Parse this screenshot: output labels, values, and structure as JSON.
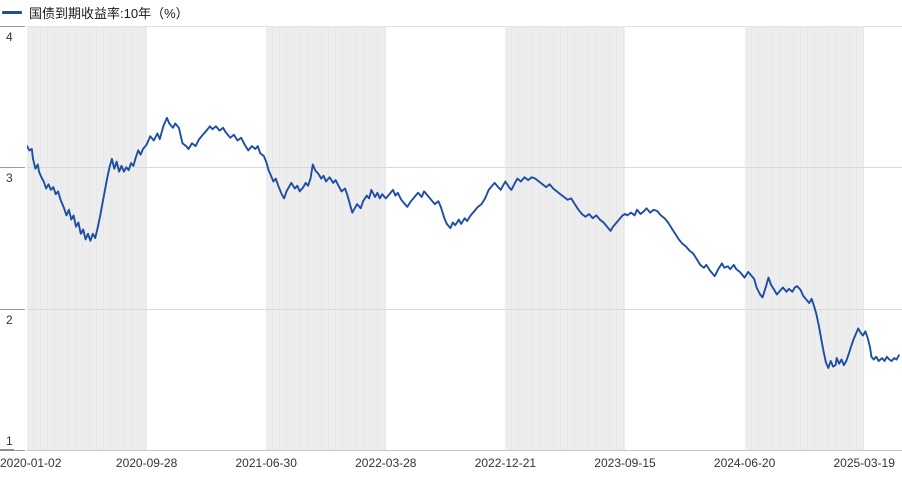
{
  "legend": {
    "label": "国债到期收益率:10年（%）",
    "marker_color": "#1e4ea3"
  },
  "colors": {
    "line": "#1e4ea3",
    "stripe": "#ececec",
    "grid": "#d9d9d9",
    "axis": "#c6c6c6",
    "text": "#333333"
  },
  "chart_data": {
    "type": "line",
    "title": "国债到期收益率:10年（%）",
    "xlabel": "",
    "ylabel": "",
    "ylim": [
      1,
      4
    ],
    "y_ticks": [
      4,
      3,
      2,
      1
    ],
    "x_ticks": [
      "2020-01-02",
      "2020-09-28",
      "2021-06-30",
      "2022-03-28",
      "2022-12-21",
      "2023-09-15",
      "2024-06-20",
      "2025-03-19"
    ],
    "grid": "horizontal",
    "background_bands": "alternating gray/white between x ticks, starting gray",
    "legend_position": "top-left",
    "series": [
      {
        "name": "国债到期收益率:10年",
        "color": "#1e4ea3",
        "unit": "%",
        "points": [
          [
            0.0,
            3.15
          ],
          [
            0.02,
            3.12
          ],
          [
            0.04,
            3.13
          ],
          [
            0.05,
            3.06
          ],
          [
            0.07,
            2.99
          ],
          [
            0.09,
            3.02
          ],
          [
            0.1,
            2.97
          ],
          [
            0.12,
            2.93
          ],
          [
            0.14,
            2.9
          ],
          [
            0.16,
            2.85
          ],
          [
            0.18,
            2.88
          ],
          [
            0.2,
            2.84
          ],
          [
            0.22,
            2.86
          ],
          [
            0.24,
            2.81
          ],
          [
            0.26,
            2.83
          ],
          [
            0.28,
            2.77
          ],
          [
            0.31,
            2.71
          ],
          [
            0.33,
            2.66
          ],
          [
            0.35,
            2.7
          ],
          [
            0.37,
            2.63
          ],
          [
            0.39,
            2.66
          ],
          [
            0.41,
            2.58
          ],
          [
            0.43,
            2.61
          ],
          [
            0.45,
            2.53
          ],
          [
            0.47,
            2.56
          ],
          [
            0.49,
            2.49
          ],
          [
            0.51,
            2.53
          ],
          [
            0.53,
            2.48
          ],
          [
            0.55,
            2.53
          ],
          [
            0.57,
            2.5
          ],
          [
            0.59,
            2.57
          ],
          [
            0.61,
            2.65
          ],
          [
            0.63,
            2.74
          ],
          [
            0.65,
            2.83
          ],
          [
            0.67,
            2.92
          ],
          [
            0.69,
            3.0
          ],
          [
            0.71,
            3.06
          ],
          [
            0.73,
            2.99
          ],
          [
            0.75,
            3.04
          ],
          [
            0.77,
            2.97
          ],
          [
            0.79,
            3.01
          ],
          [
            0.81,
            2.97
          ],
          [
            0.83,
            3.0
          ],
          [
            0.85,
            2.98
          ],
          [
            0.87,
            3.03
          ],
          [
            0.89,
            3.01
          ],
          [
            0.91,
            3.07
          ],
          [
            0.93,
            3.12
          ],
          [
            0.95,
            3.09
          ],
          [
            0.97,
            3.13
          ],
          [
            1.0,
            3.16
          ],
          [
            1.03,
            3.22
          ],
          [
            1.06,
            3.19
          ],
          [
            1.09,
            3.24
          ],
          [
            1.11,
            3.2
          ],
          [
            1.14,
            3.29
          ],
          [
            1.17,
            3.35
          ],
          [
            1.19,
            3.31
          ],
          [
            1.22,
            3.28
          ],
          [
            1.24,
            3.31
          ],
          [
            1.27,
            3.28
          ],
          [
            1.3,
            3.17
          ],
          [
            1.33,
            3.15
          ],
          [
            1.35,
            3.13
          ],
          [
            1.38,
            3.17
          ],
          [
            1.41,
            3.15
          ],
          [
            1.44,
            3.2
          ],
          [
            1.47,
            3.23
          ],
          [
            1.5,
            3.26
          ],
          [
            1.53,
            3.29
          ],
          [
            1.55,
            3.27
          ],
          [
            1.58,
            3.29
          ],
          [
            1.61,
            3.26
          ],
          [
            1.64,
            3.28
          ],
          [
            1.66,
            3.25
          ],
          [
            1.7,
            3.21
          ],
          [
            1.73,
            3.23
          ],
          [
            1.76,
            3.19
          ],
          [
            1.79,
            3.21
          ],
          [
            1.82,
            3.16
          ],
          [
            1.85,
            3.12
          ],
          [
            1.88,
            3.15
          ],
          [
            1.91,
            3.13
          ],
          [
            1.93,
            3.15
          ],
          [
            1.95,
            3.1
          ],
          [
            1.98,
            3.08
          ],
          [
            2.0,
            3.04
          ],
          [
            2.02,
            2.98
          ],
          [
            2.04,
            2.94
          ],
          [
            2.06,
            2.9
          ],
          [
            2.08,
            2.92
          ],
          [
            2.1,
            2.87
          ],
          [
            2.13,
            2.81
          ],
          [
            2.15,
            2.78
          ],
          [
            2.17,
            2.83
          ],
          [
            2.19,
            2.86
          ],
          [
            2.21,
            2.89
          ],
          [
            2.24,
            2.85
          ],
          [
            2.26,
            2.87
          ],
          [
            2.28,
            2.83
          ],
          [
            2.31,
            2.86
          ],
          [
            2.33,
            2.89
          ],
          [
            2.35,
            2.87
          ],
          [
            2.37,
            2.92
          ],
          [
            2.39,
            3.02
          ],
          [
            2.41,
            2.98
          ],
          [
            2.44,
            2.95
          ],
          [
            2.46,
            2.92
          ],
          [
            2.48,
            2.94
          ],
          [
            2.5,
            2.9
          ],
          [
            2.53,
            2.93
          ],
          [
            2.56,
            2.89
          ],
          [
            2.58,
            2.91
          ],
          [
            2.61,
            2.86
          ],
          [
            2.63,
            2.83
          ],
          [
            2.66,
            2.85
          ],
          [
            2.68,
            2.8
          ],
          [
            2.7,
            2.74
          ],
          [
            2.72,
            2.68
          ],
          [
            2.74,
            2.71
          ],
          [
            2.76,
            2.74
          ],
          [
            2.79,
            2.71
          ],
          [
            2.81,
            2.76
          ],
          [
            2.84,
            2.8
          ],
          [
            2.86,
            2.78
          ],
          [
            2.88,
            2.84
          ],
          [
            2.91,
            2.79
          ],
          [
            2.93,
            2.82
          ],
          [
            2.95,
            2.78
          ],
          [
            2.97,
            2.81
          ],
          [
            3.0,
            2.78
          ],
          [
            3.03,
            2.81
          ],
          [
            3.06,
            2.84
          ],
          [
            3.08,
            2.8
          ],
          [
            3.1,
            2.82
          ],
          [
            3.13,
            2.77
          ],
          [
            3.16,
            2.74
          ],
          [
            3.18,
            2.72
          ],
          [
            3.21,
            2.76
          ],
          [
            3.24,
            2.79
          ],
          [
            3.27,
            2.82
          ],
          [
            3.3,
            2.79
          ],
          [
            3.32,
            2.83
          ],
          [
            3.35,
            2.8
          ],
          [
            3.38,
            2.77
          ],
          [
            3.41,
            2.74
          ],
          [
            3.44,
            2.76
          ],
          [
            3.46,
            2.72
          ],
          [
            3.49,
            2.64
          ],
          [
            3.51,
            2.6
          ],
          [
            3.54,
            2.57
          ],
          [
            3.56,
            2.61
          ],
          [
            3.58,
            2.59
          ],
          [
            3.61,
            2.63
          ],
          [
            3.63,
            2.6
          ],
          [
            3.66,
            2.64
          ],
          [
            3.68,
            2.62
          ],
          [
            3.71,
            2.66
          ],
          [
            3.74,
            2.69
          ],
          [
            3.77,
            2.72
          ],
          [
            3.8,
            2.74
          ],
          [
            3.83,
            2.78
          ],
          [
            3.86,
            2.84
          ],
          [
            3.89,
            2.87
          ],
          [
            3.91,
            2.89
          ],
          [
            3.94,
            2.86
          ],
          [
            3.96,
            2.84
          ],
          [
            3.98,
            2.87
          ],
          [
            4.0,
            2.9
          ],
          [
            4.03,
            2.86
          ],
          [
            4.05,
            2.84
          ],
          [
            4.08,
            2.89
          ],
          [
            4.1,
            2.92
          ],
          [
            4.13,
            2.9
          ],
          [
            4.16,
            2.93
          ],
          [
            4.19,
            2.91
          ],
          [
            4.22,
            2.93
          ],
          [
            4.25,
            2.92
          ],
          [
            4.28,
            2.9
          ],
          [
            4.31,
            2.88
          ],
          [
            4.34,
            2.86
          ],
          [
            4.37,
            2.88
          ],
          [
            4.4,
            2.85
          ],
          [
            4.43,
            2.83
          ],
          [
            4.46,
            2.81
          ],
          [
            4.49,
            2.79
          ],
          [
            4.52,
            2.77
          ],
          [
            4.55,
            2.78
          ],
          [
            4.58,
            2.74
          ],
          [
            4.61,
            2.7
          ],
          [
            4.64,
            2.67
          ],
          [
            4.67,
            2.65
          ],
          [
            4.7,
            2.67
          ],
          [
            4.73,
            2.64
          ],
          [
            4.76,
            2.66
          ],
          [
            4.79,
            2.63
          ],
          [
            4.82,
            2.61
          ],
          [
            4.85,
            2.58
          ],
          [
            4.88,
            2.55
          ],
          [
            4.9,
            2.58
          ],
          [
            4.93,
            2.61
          ],
          [
            4.96,
            2.64
          ],
          [
            4.98,
            2.66
          ],
          [
            5.0,
            2.67
          ],
          [
            5.02,
            2.66
          ],
          [
            5.05,
            2.68
          ],
          [
            5.08,
            2.66
          ],
          [
            5.1,
            2.7
          ],
          [
            5.13,
            2.67
          ],
          [
            5.16,
            2.69
          ],
          [
            5.18,
            2.71
          ],
          [
            5.21,
            2.68
          ],
          [
            5.24,
            2.7
          ],
          [
            5.27,
            2.69
          ],
          [
            5.3,
            2.66
          ],
          [
            5.33,
            2.64
          ],
          [
            5.36,
            2.61
          ],
          [
            5.39,
            2.57
          ],
          [
            5.42,
            2.53
          ],
          [
            5.45,
            2.49
          ],
          [
            5.48,
            2.46
          ],
          [
            5.51,
            2.44
          ],
          [
            5.54,
            2.41
          ],
          [
            5.57,
            2.39
          ],
          [
            5.6,
            2.35
          ],
          [
            5.63,
            2.31
          ],
          [
            5.66,
            2.29
          ],
          [
            5.68,
            2.31
          ],
          [
            5.71,
            2.27
          ],
          [
            5.73,
            2.25
          ],
          [
            5.75,
            2.23
          ],
          [
            5.78,
            2.28
          ],
          [
            5.81,
            2.32
          ],
          [
            5.83,
            2.29
          ],
          [
            5.86,
            2.3
          ],
          [
            5.88,
            2.28
          ],
          [
            5.91,
            2.31
          ],
          [
            5.93,
            2.28
          ],
          [
            5.96,
            2.26
          ],
          [
            5.98,
            2.24
          ],
          [
            6.0,
            2.22
          ],
          [
            6.03,
            2.26
          ],
          [
            6.05,
            2.24
          ],
          [
            6.08,
            2.21
          ],
          [
            6.1,
            2.15
          ],
          [
            6.13,
            2.1
          ],
          [
            6.15,
            2.08
          ],
          [
            6.18,
            2.16
          ],
          [
            6.2,
            2.22
          ],
          [
            6.22,
            2.17
          ],
          [
            6.25,
            2.13
          ],
          [
            6.27,
            2.1
          ],
          [
            6.3,
            2.13
          ],
          [
            6.32,
            2.15
          ],
          [
            6.35,
            2.12
          ],
          [
            6.37,
            2.14
          ],
          [
            6.4,
            2.12
          ],
          [
            6.42,
            2.15
          ],
          [
            6.44,
            2.16
          ],
          [
            6.47,
            2.13
          ],
          [
            6.49,
            2.09
          ],
          [
            6.52,
            2.06
          ],
          [
            6.54,
            2.04
          ],
          [
            6.56,
            2.07
          ],
          [
            6.58,
            2.02
          ],
          [
            6.6,
            1.96
          ],
          [
            6.62,
            1.88
          ],
          [
            6.64,
            1.79
          ],
          [
            6.66,
            1.7
          ],
          [
            6.68,
            1.62
          ],
          [
            6.7,
            1.58
          ],
          [
            6.72,
            1.63
          ],
          [
            6.74,
            1.59
          ],
          [
            6.76,
            1.6
          ],
          [
            6.77,
            1.65
          ],
          [
            6.79,
            1.61
          ],
          [
            6.81,
            1.64
          ],
          [
            6.83,
            1.6
          ],
          [
            6.85,
            1.63
          ],
          [
            6.87,
            1.68
          ],
          [
            6.89,
            1.73
          ],
          [
            6.91,
            1.78
          ],
          [
            6.93,
            1.82
          ],
          [
            6.95,
            1.86
          ],
          [
            6.97,
            1.83
          ],
          [
            6.99,
            1.81
          ],
          [
            7.01,
            1.84
          ],
          [
            7.03,
            1.79
          ],
          [
            7.05,
            1.72
          ],
          [
            7.06,
            1.66
          ],
          [
            7.08,
            1.64
          ],
          [
            7.1,
            1.66
          ],
          [
            7.12,
            1.63
          ],
          [
            7.15,
            1.65
          ],
          [
            7.17,
            1.63
          ],
          [
            7.19,
            1.66
          ],
          [
            7.21,
            1.64
          ],
          [
            7.23,
            1.63
          ],
          [
            7.25,
            1.65
          ],
          [
            7.27,
            1.64
          ],
          [
            7.29,
            1.67
          ]
        ],
        "points_note": "x = position in x-tick units (0 = 2020-01-02 tick, 1 = 2020-09-28 tick, ...), y = yield in %"
      }
    ]
  }
}
